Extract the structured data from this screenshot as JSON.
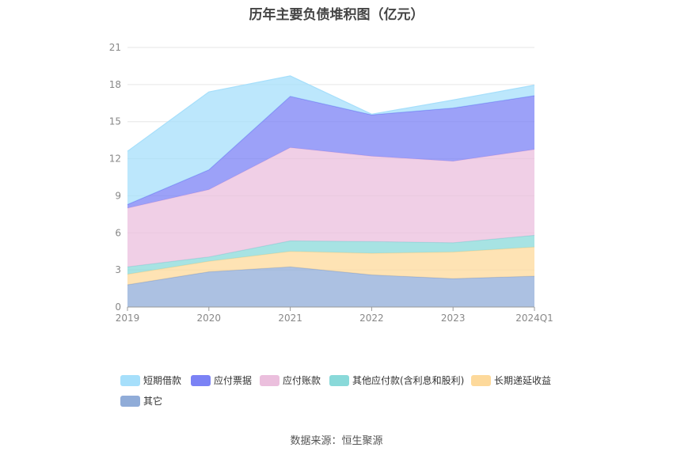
{
  "chart_data": {
    "type": "area",
    "title": "历年主要负债堆积图（亿元）",
    "stacked": true,
    "categories": [
      "2019",
      "2020",
      "2021",
      "2022",
      "2023",
      "2024Q1"
    ],
    "ylim": [
      0,
      21
    ],
    "yticks": [
      0,
      3,
      6,
      9,
      12,
      15,
      18,
      21
    ],
    "grid": true,
    "legend_position": "bottom",
    "series": [
      {
        "name": "其它",
        "color": "#90acd8",
        "values": [
          1.8,
          2.85,
          3.25,
          2.6,
          2.3,
          2.5
        ]
      },
      {
        "name": "长期递延收益",
        "color": "#fdd99b",
        "values": [
          0.85,
          0.85,
          1.25,
          1.75,
          2.15,
          2.35
        ]
      },
      {
        "name": "其他应付款(含利息和股利)",
        "color": "#89d9d9",
        "values": [
          0.6,
          0.35,
          0.85,
          0.95,
          0.75,
          0.95
        ]
      },
      {
        "name": "应付账款",
        "color": "#ebbfdd",
        "values": [
          4.75,
          5.45,
          7.55,
          6.9,
          6.6,
          6.95
        ]
      },
      {
        "name": "应付票据",
        "color": "#7b82f5",
        "values": [
          0.3,
          1.6,
          4.15,
          3.35,
          4.3,
          4.35
        ]
      },
      {
        "name": "短期借款",
        "color": "#a6dffb",
        "values": [
          4.3,
          6.3,
          1.65,
          0.05,
          0.65,
          0.85
        ]
      }
    ]
  },
  "legend": {
    "items": [
      {
        "label": "短期借款",
        "color": "#a6dffb"
      },
      {
        "label": "应付票据",
        "color": "#7b82f5"
      },
      {
        "label": "应付账款",
        "color": "#ebbfdd"
      },
      {
        "label": "其他应付款(含利息和股利)",
        "color": "#89d9d9"
      },
      {
        "label": "长期递延收益",
        "color": "#fdd99b"
      },
      {
        "label": "其它",
        "color": "#90acd8"
      }
    ]
  },
  "source": "数据来源：恒生聚源"
}
